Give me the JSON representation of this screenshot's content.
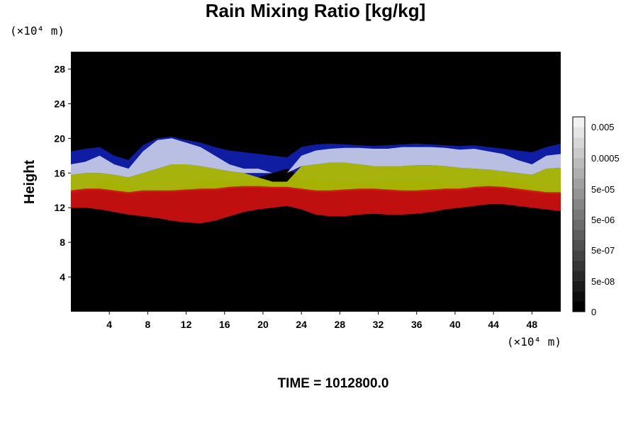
{
  "chart_data": {
    "type": "heatmap",
    "title": "Rain Mixing Ratio [kg/kg]",
    "ylabel": "Height",
    "y_unit": "(×10⁴ m)",
    "x_unit": "(×10⁴ m)",
    "xlim": [
      0,
      51
    ],
    "ylim": [
      0,
      30
    ],
    "x_ticks": [
      4,
      8,
      12,
      16,
      20,
      24,
      28,
      32,
      36,
      40,
      44,
      48
    ],
    "y_ticks": [
      4,
      8,
      12,
      16,
      20,
      24,
      28
    ],
    "colorbar_labels": [
      "0.005",
      "0.0005",
      "5e-05",
      "5e-06",
      "5e-07",
      "5e-08",
      "0"
    ],
    "colorbar_levels": 19,
    "background_color": "#000000",
    "layers": [
      {
        "color": "#1020b0",
        "top": [
          18.5,
          18.8,
          19.0,
          18.0,
          17.5,
          19.2,
          20.0,
          20.2,
          19.8,
          19.5,
          19.0,
          18.6,
          18.4,
          18.2,
          18.0,
          17.8,
          19.0,
          19.3,
          19.4,
          19.3,
          19.2,
          19.1,
          19.2,
          19.3,
          19.4,
          19.3,
          19.2,
          19.1,
          19.2,
          19.0,
          18.8,
          18.6,
          18.4,
          19.0,
          19.4
        ],
        "bottom": [
          13.5,
          13.8,
          15.0,
          15.0,
          14.5,
          14.0,
          14.0,
          14.2,
          14.5,
          15.0,
          15.0,
          15.2,
          15.0,
          15.5,
          16.0,
          16.5,
          15.5,
          15.2,
          15.0,
          14.8,
          14.8,
          14.9,
          15.0,
          15.0,
          15.0,
          15.0,
          14.8,
          14.6,
          14.5,
          15.0,
          15.5,
          15.2,
          14.6,
          14.2,
          14.0
        ]
      },
      {
        "color": "#c8cde8",
        "top": [
          17.0,
          17.3,
          18.0,
          17.0,
          16.5,
          18.5,
          19.8,
          20.0,
          19.5,
          19.0,
          18.0,
          17.0,
          16.5,
          16.5,
          16.0,
          16.0,
          18.0,
          18.6,
          18.8,
          18.9,
          18.9,
          18.8,
          18.8,
          19.0,
          19.0,
          19.0,
          18.9,
          18.7,
          18.8,
          18.5,
          18.2,
          17.5,
          17.0,
          18.0,
          18.2
        ],
        "bottom": [
          15.8,
          16.0,
          16.0,
          15.8,
          15.5,
          16.0,
          16.5,
          17.0,
          17.0,
          16.8,
          16.5,
          16.2,
          16.0,
          16.0,
          16.0,
          16.0,
          16.8,
          17.0,
          17.2,
          17.2,
          17.0,
          16.8,
          16.8,
          16.8,
          16.9,
          16.9,
          16.8,
          16.6,
          16.5,
          16.4,
          16.2,
          16.0,
          15.8,
          16.5,
          16.6
        ]
      },
      {
        "color": "#b4c000",
        "top": [
          15.8,
          16.0,
          16.0,
          15.8,
          15.5,
          16.0,
          16.5,
          17.0,
          17.0,
          16.8,
          16.5,
          16.2,
          16.0,
          15.5,
          15.0,
          15.0,
          16.8,
          17.0,
          17.2,
          17.2,
          17.0,
          16.8,
          16.8,
          16.8,
          16.9,
          16.9,
          16.8,
          16.6,
          16.5,
          16.4,
          16.2,
          16.0,
          15.8,
          16.5,
          16.6
        ],
        "bottom": [
          13.8,
          14.0,
          14.0,
          13.8,
          13.6,
          13.8,
          13.8,
          13.8,
          13.9,
          14.0,
          14.0,
          14.2,
          14.3,
          14.3,
          14.2,
          14.2,
          14.0,
          13.8,
          13.8,
          13.9,
          14.0,
          14.0,
          13.9,
          13.8,
          13.8,
          13.9,
          14.0,
          14.0,
          14.2,
          14.3,
          14.2,
          14.0,
          13.8,
          13.6,
          13.6
        ]
      },
      {
        "color": "#d01010",
        "top": [
          14.0,
          14.2,
          14.2,
          14.0,
          13.8,
          14.0,
          14.0,
          14.0,
          14.1,
          14.2,
          14.2,
          14.4,
          14.5,
          14.5,
          14.4,
          14.4,
          14.2,
          14.0,
          14.0,
          14.1,
          14.2,
          14.2,
          14.1,
          14.0,
          14.0,
          14.1,
          14.2,
          14.2,
          14.4,
          14.5,
          14.4,
          14.2,
          14.0,
          13.8,
          13.8
        ],
        "bottom": [
          12.0,
          12.0,
          11.8,
          11.5,
          11.2,
          11.0,
          10.8,
          10.5,
          10.3,
          10.2,
          10.5,
          11.0,
          11.5,
          11.8,
          12.0,
          12.2,
          11.8,
          11.2,
          11.0,
          11.0,
          11.2,
          11.3,
          11.2,
          11.2,
          11.3,
          11.5,
          11.8,
          12.0,
          12.2,
          12.4,
          12.4,
          12.2,
          12.0,
          11.8,
          11.6
        ]
      }
    ]
  },
  "footer": {
    "time_label": "TIME = 1012800.0"
  },
  "colors": {
    "plot_background": "#000000",
    "colorbar_dark": "#000000",
    "colorbar_light": "#f2f2f2"
  }
}
